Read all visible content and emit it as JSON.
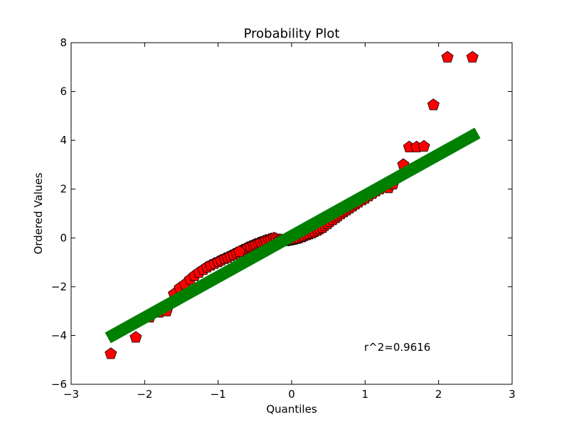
{
  "chart_data": {
    "type": "scatter",
    "title": "Probability Plot",
    "xlabel": "Quantiles",
    "ylabel": "Ordered Values",
    "xlim": [
      -3,
      3
    ],
    "ylim": [
      -6,
      8
    ],
    "xticks": [
      -3,
      -2,
      -1,
      0,
      1,
      2,
      3
    ],
    "yticks": [
      -6,
      -4,
      -2,
      0,
      2,
      4,
      6,
      8
    ],
    "xtick_labels": [
      "−3",
      "−2",
      "−1",
      "0",
      "1",
      "2",
      "3"
    ],
    "ytick_labels": [
      "−6",
      "−4",
      "−2",
      "0",
      "2",
      "4",
      "6",
      "8"
    ],
    "grid": false,
    "annotation": "r^2=0.9616",
    "fit_line": {
      "x": [
        -2.5,
        2.53
      ],
      "y": [
        -4.1,
        4.3
      ],
      "color": "#008000"
    },
    "marker": {
      "shape": "pentagon",
      "fill": "#ff0000",
      "stroke": "#000000"
    },
    "points": {
      "x": [
        -2.46,
        -2.12,
        -1.93,
        -1.8,
        -1.7,
        -1.6,
        -1.52,
        -1.45,
        -1.38,
        -1.32,
        -1.26,
        -1.2,
        -1.15,
        -1.1,
        -1.05,
        -1.0,
        -0.96,
        -0.91,
        -0.87,
        -0.83,
        -0.79,
        -0.75,
        -0.71,
        -0.67,
        -0.63,
        -0.6,
        -0.56,
        -0.52,
        -0.49,
        -0.45,
        -0.42,
        -0.38,
        -0.35,
        -0.31,
        -0.28,
        -0.24,
        -0.21,
        -0.17,
        -0.14,
        -0.1,
        -0.07,
        -0.03,
        0.0,
        0.03,
        0.07,
        0.1,
        0.14,
        0.17,
        0.21,
        0.24,
        0.28,
        0.31,
        0.35,
        0.38,
        0.42,
        0.45,
        0.49,
        0.52,
        0.56,
        0.6,
        0.63,
        0.67,
        0.71,
        0.75,
        0.79,
        0.83,
        0.87,
        0.91,
        0.96,
        1.0,
        1.05,
        1.1,
        1.15,
        1.2,
        1.26,
        1.32,
        1.38,
        1.45,
        1.52,
        1.6,
        1.7,
        1.8,
        1.93,
        2.12,
        2.46
      ],
      "y": [
        -4.75,
        -4.08,
        -3.25,
        -3.05,
        -3.0,
        -2.3,
        -2.05,
        -1.9,
        -1.7,
        -1.55,
        -1.42,
        -1.3,
        -1.2,
        -1.12,
        -1.05,
        -0.98,
        -0.92,
        -0.85,
        -0.8,
        -0.74,
        -0.68,
        -0.62,
        -0.56,
        -0.5,
        -0.45,
        -0.4,
        -0.35,
        -0.3,
        -0.26,
        -0.22,
        -0.18,
        -0.14,
        -0.1,
        -0.07,
        -0.04,
        -0.01,
        -0.04,
        -0.08,
        -0.08,
        -0.1,
        -0.12,
        -0.1,
        -0.08,
        -0.06,
        -0.03,
        0.0,
        0.04,
        0.08,
        0.12,
        0.16,
        0.2,
        0.25,
        0.3,
        0.36,
        0.42,
        0.5,
        0.58,
        0.66,
        0.74,
        0.82,
        0.9,
        0.98,
        1.06,
        1.14,
        1.22,
        1.3,
        1.38,
        1.46,
        1.55,
        1.62,
        1.72,
        1.82,
        1.92,
        2.0,
        2.1,
        2.05,
        2.2,
        2.5,
        3.0,
        3.72,
        3.72,
        3.75,
        5.45,
        7.4,
        7.4
      ]
    }
  }
}
